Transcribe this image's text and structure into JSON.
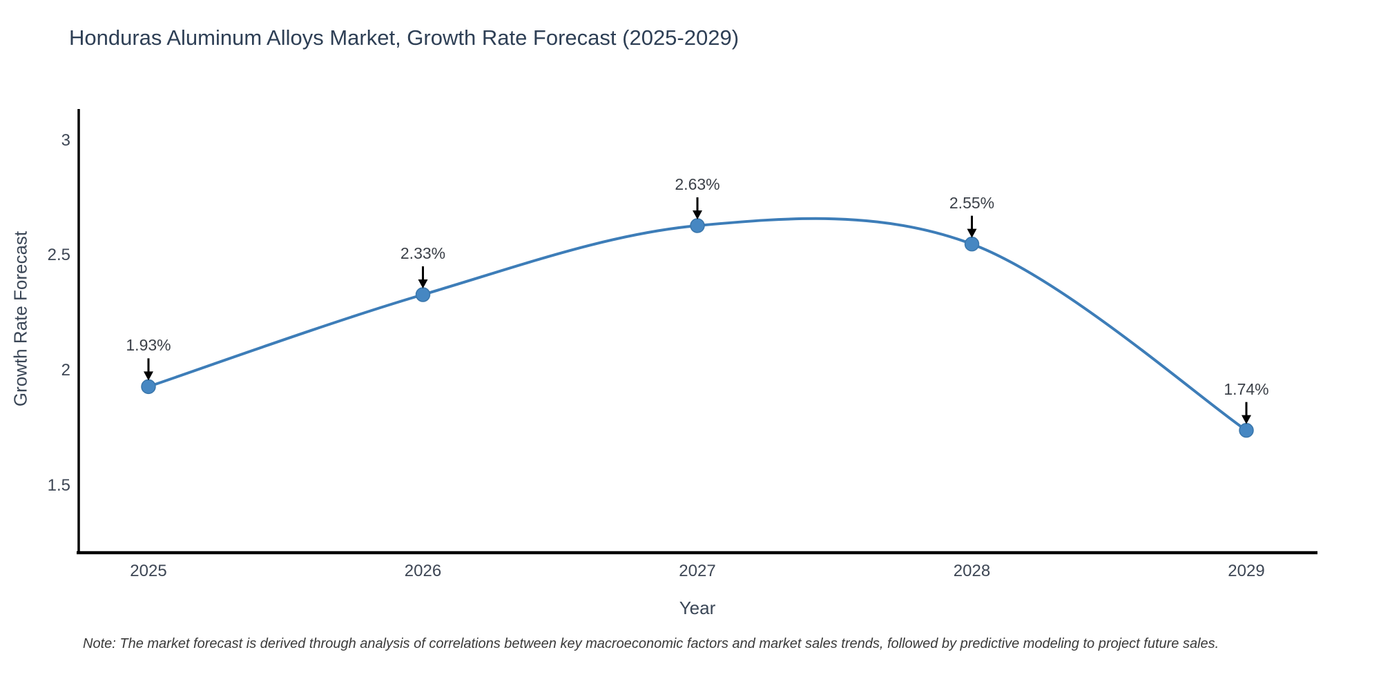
{
  "chart_data": {
    "type": "line",
    "title": "Honduras Aluminum Alloys Market, Growth Rate Forecast (2025-2029)",
    "xlabel": "Year",
    "ylabel": "Growth Rate Forecast",
    "x": [
      2025,
      2026,
      2027,
      2028,
      2029
    ],
    "series": [
      {
        "name": "Growth Rate Forecast",
        "values": [
          1.93,
          2.33,
          2.63,
          2.55,
          1.74
        ]
      }
    ],
    "point_labels": [
      "1.93%",
      "2.33%",
      "2.63%",
      "2.55%",
      "1.74%"
    ],
    "xtick_labels": [
      "2025",
      "2026",
      "2027",
      "2028",
      "2029"
    ],
    "ytick_values": [
      3,
      2.5,
      2,
      1.5
    ],
    "ytick_labels": [
      "3",
      "2.5",
      "2",
      "1.5"
    ],
    "xlim": [
      2024.74,
      2029.26
    ],
    "ylim": [
      1.2,
      3.13
    ],
    "grid": false,
    "legend": "none",
    "curve": "spline",
    "annotation_style": "black-down-arrow-to-point",
    "colors": {
      "line": "#3d7db8",
      "marker_fill": "#4687c2",
      "marker_edge": "#3a76ab",
      "axis": "#000000",
      "arrow": "#000000",
      "title_text": "#2e3f55",
      "axis_label_text": "#3a4656",
      "tick_text": "#3d4654",
      "annotation_text": "#3b4048",
      "note_text": "#3a3a3a",
      "background": "#ffffff"
    }
  },
  "footer": {
    "note": "Note: The market forecast is derived through analysis of correlations between key macroeconomic factors and market sales trends, followed by predictive modeling to project future sales."
  }
}
